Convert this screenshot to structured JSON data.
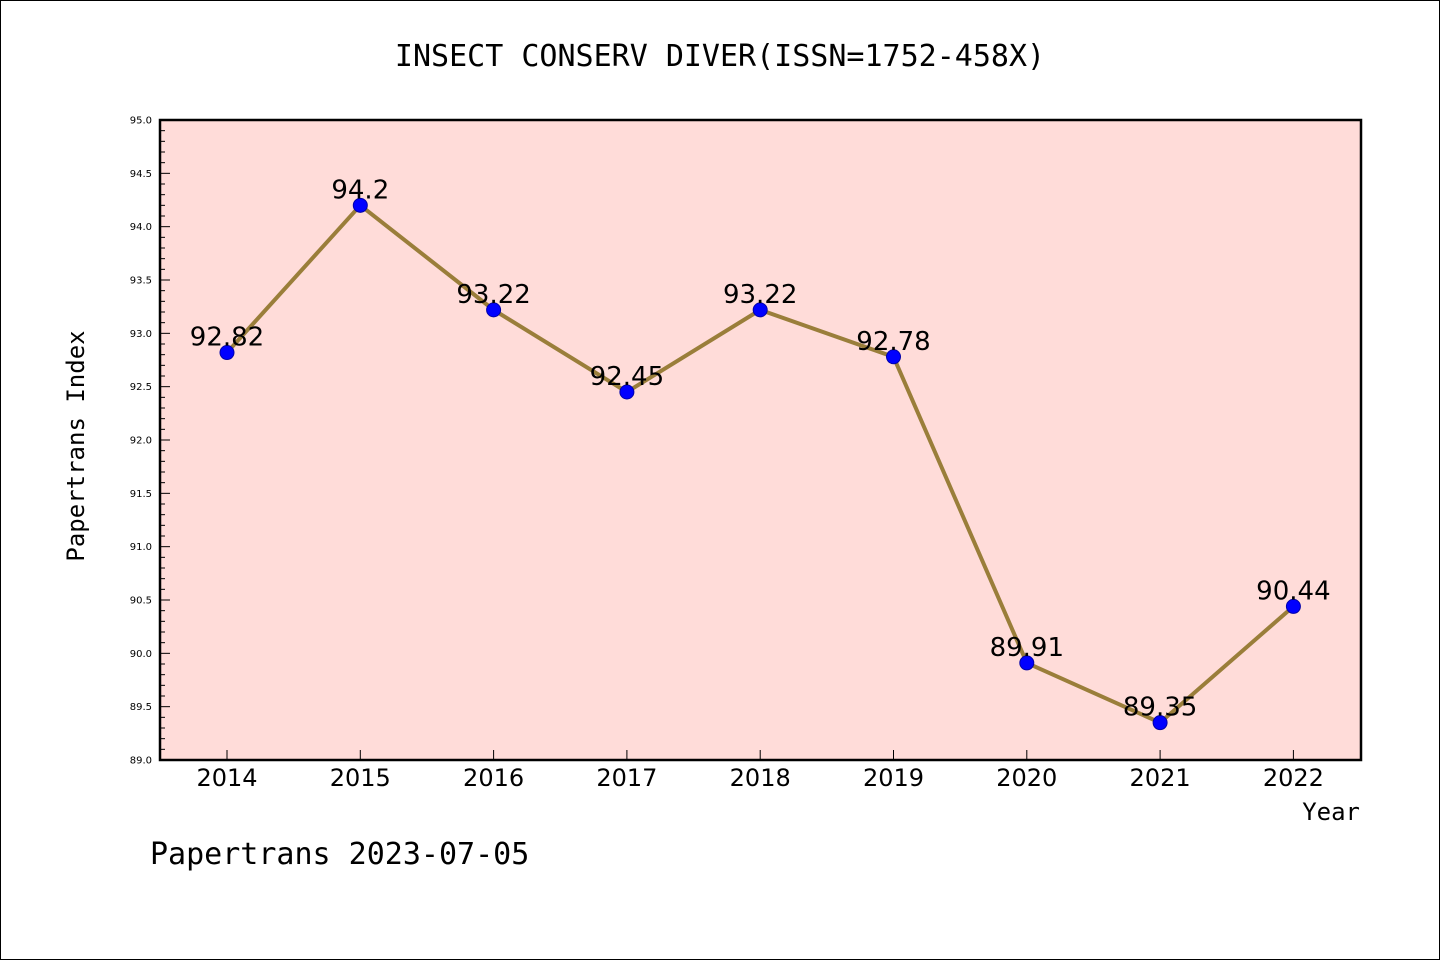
{
  "chart_data": {
    "type": "line",
    "title": "INSECT CONSERV DIVER(ISSN=1752-458X)",
    "xlabel": "Year",
    "ylabel": "Papertrans Index",
    "categories": [
      "2014",
      "2015",
      "2016",
      "2017",
      "2018",
      "2019",
      "2020",
      "2021",
      "2022"
    ],
    "series": [
      {
        "values": [
          92.82,
          94.2,
          93.22,
          92.45,
          93.22,
          92.78,
          89.91,
          89.35,
          90.44
        ],
        "labels": [
          "92.82",
          "94.2",
          "93.22",
          "92.45",
          "93.22",
          "92.78",
          "89.91",
          "89.35",
          "90.44"
        ],
        "line_color": "#9a7e3a",
        "marker_color": "#0000ff"
      }
    ],
    "ylim": [
      89.0,
      95.0
    ],
    "yticks": [
      "89.0",
      "89.5",
      "90.0",
      "90.5",
      "91.0",
      "91.5",
      "92.0",
      "92.5",
      "93.0",
      "93.5",
      "94.0",
      "94.5",
      "95.0"
    ],
    "plot_background": "#ffdcd9",
    "grid": false,
    "legend": "none"
  },
  "footer": {
    "text": "Papertrans 2023-07-05"
  }
}
